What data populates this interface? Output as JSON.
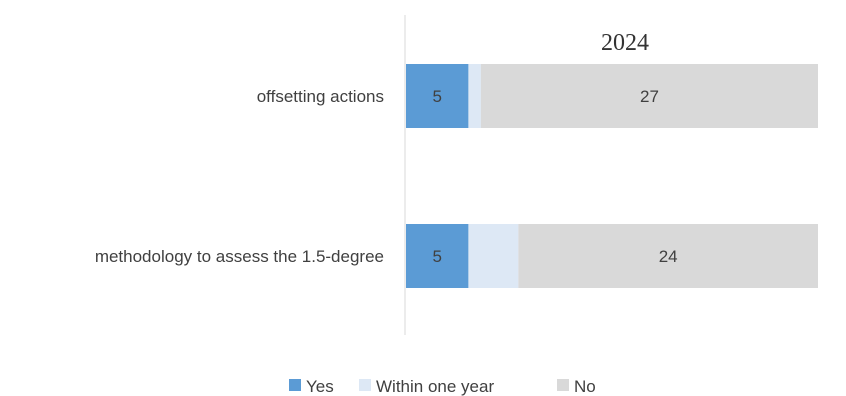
{
  "chart_data": {
    "type": "bar",
    "orientation": "horizontal",
    "stacked": true,
    "title": "2024",
    "categories": [
      "offsetting actions",
      "methodology to assess the 1.5-degree"
    ],
    "series": [
      {
        "name": "Yes",
        "values": [
          5,
          5
        ],
        "color": "#5b9bd5",
        "label_color": "#404040"
      },
      {
        "name": "Within one year",
        "values": [
          1,
          4
        ],
        "color": "#dde8f5",
        "label_color": "#404040"
      },
      {
        "name": "No",
        "values": [
          27,
          24
        ],
        "color": "#d9d9d9",
        "label_color": "#404040"
      }
    ],
    "data_labels": [
      {
        "category": 0,
        "series": 0,
        "text": "5"
      },
      {
        "category": 0,
        "series": 2,
        "text": "27"
      },
      {
        "category": 1,
        "series": 0,
        "text": "5"
      },
      {
        "category": 1,
        "series": 2,
        "text": "24"
      }
    ],
    "xlim": [
      0,
      33
    ],
    "grid": false,
    "legend_position": "bottom"
  }
}
